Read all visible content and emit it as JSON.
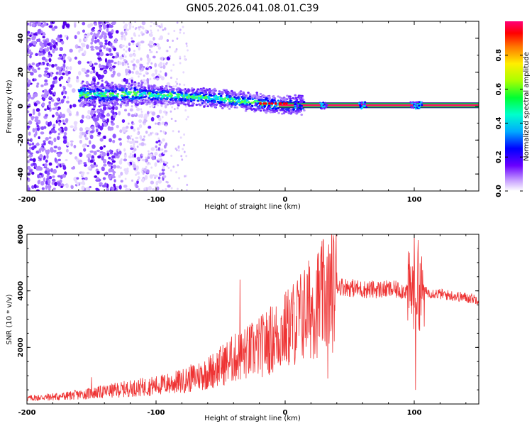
{
  "figure_title": "GN05.2026.041.08.01.C39",
  "chart_data": [
    {
      "type": "heatmap",
      "title": "",
      "xlabel": "Height of straight line (km)",
      "ylabel": "Frequency (Hz)",
      "xlim": [
        -200,
        150
      ],
      "ylim": [
        -50,
        50
      ],
      "x_ticks": [
        -200,
        -100,
        0,
        100
      ],
      "y_ticks": [
        -40,
        -20,
        0,
        20,
        40
      ],
      "colorbar": {
        "label": "Normalized spectral amplitude",
        "range": [
          0.0,
          1.0
        ],
        "ticks": [
          0.0,
          0.2,
          0.4,
          0.6,
          0.8
        ],
        "colors": [
          "#ffffff",
          "#9b4dff",
          "#5500ff",
          "#0000ff",
          "#00ccff",
          "#00ff66",
          "#aaff00",
          "#ffff00",
          "#ff8800",
          "#ff0000",
          "#ff0088"
        ]
      },
      "features": [
        {
          "name": "scattered noise",
          "x_range": [
            -200,
            -110
          ],
          "y_range": [
            -50,
            50
          ]
        },
        {
          "name": "drifting tone",
          "x": [
            -155,
            -110,
            -60,
            -20,
            0,
            150
          ],
          "y": [
            7,
            7,
            5,
            2,
            0.5,
            0.5
          ]
        },
        {
          "name": "steady carrier",
          "x_range": [
            0,
            150
          ],
          "y": 0.5,
          "amplitude": 1.0
        }
      ]
    },
    {
      "type": "line",
      "title": "",
      "xlabel": "Height of straight line (km)",
      "ylabel": "SNR (10 * v/v)",
      "xlim": [
        -200,
        150
      ],
      "ylim": [
        0,
        6000
      ],
      "x_ticks": [
        -200,
        -100,
        0,
        100
      ],
      "y_ticks": [
        2000,
        4000,
        6000
      ],
      "series": [
        {
          "name": "SNR",
          "color": "#ee3333",
          "baseline": {
            "x": [
              -200,
              -170,
              -150,
              -120,
              -100,
              -80,
              -60,
              -40,
              -20,
              0,
              20,
              30,
              35,
              40,
              45,
              60,
              80,
              100,
              110,
              150
            ],
            "y": [
              200,
              280,
              380,
              550,
              650,
              800,
              1100,
              1600,
              2000,
              2600,
              3400,
              3800,
              3900,
              4200,
              4150,
              4050,
              4050,
              4000,
              3950,
              3700
            ]
          },
          "fluctuation_fraction": 0.55,
          "spikes": [
            {
              "x": -150,
              "y": 950
            },
            {
              "x": -35,
              "y": 4400
            },
            {
              "x": 33,
              "y": 900
            },
            {
              "x": 40,
              "y": 4650
            },
            {
              "x": 100,
              "y": 6000
            },
            {
              "x": 101,
              "y": 500
            },
            {
              "x": 103,
              "y": 5800
            }
          ]
        }
      ]
    }
  ]
}
